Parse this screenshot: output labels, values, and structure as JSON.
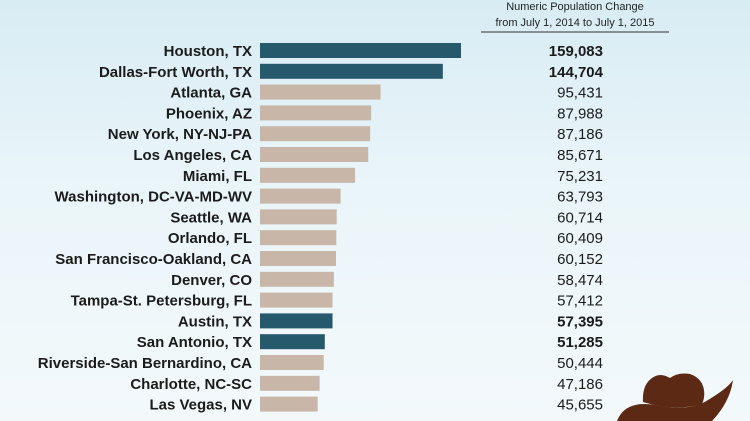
{
  "chart_data": {
    "type": "bar",
    "orientation": "horizontal",
    "header": {
      "line1": "Numeric Population Change",
      "line2": "from July 1, 2014 to July 1, 2015"
    },
    "categories": [
      "Houston, TX",
      "Dallas-Fort Worth, TX",
      "Atlanta, GA",
      "Phoenix, AZ",
      "New York, NY-NJ-PA",
      "Los Angeles, CA",
      "Miami, FL",
      "Washington, DC-VA-MD-WV",
      "Seattle, WA",
      "Orlando, FL",
      "San Francisco-Oakland, CA",
      "Denver, CO",
      "Tampa-St. Petersburg, FL",
      "Austin, TX",
      "San Antonio, TX",
      "Riverside-San Bernardino, CA",
      "Charlotte, NC-SC",
      "Las Vegas, NV"
    ],
    "values": [
      159083,
      144704,
      95431,
      87988,
      87186,
      85671,
      75231,
      63793,
      60714,
      60409,
      60152,
      58474,
      57412,
      57395,
      51285,
      50444,
      47186,
      45655
    ],
    "value_labels": [
      "159,083",
      "144,704",
      "95,431",
      "87,988",
      "87,186",
      "85,671",
      "75,231",
      "63,793",
      "60,714",
      "60,409",
      "60,152",
      "58,474",
      "57,412",
      "57,395",
      "51,285",
      "50,444",
      "47,186",
      "45,655"
    ],
    "highlighted": [
      true,
      true,
      false,
      false,
      false,
      false,
      false,
      false,
      false,
      false,
      false,
      false,
      false,
      true,
      true,
      false,
      false,
      false
    ],
    "colors": {
      "highlight": "#25596b",
      "default": "#c8b6a8"
    },
    "xlim": [
      0,
      159083
    ],
    "grid": false,
    "legend": "none"
  },
  "colors": {
    "background_top": "#d8ecf4",
    "background_bottom": "#f3f9fb",
    "hat": "#5c2a14"
  },
  "decoration": {
    "icon": "cowboy-hat-icon"
  }
}
